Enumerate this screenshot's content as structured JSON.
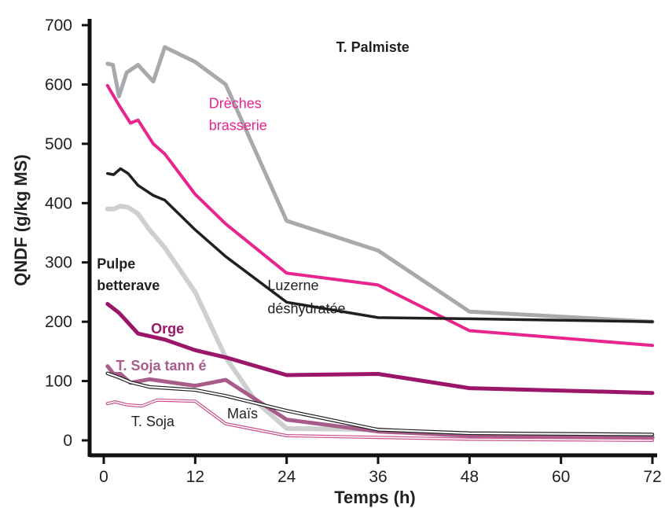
{
  "chart_data": {
    "type": "line",
    "xlabel": "Temps (h)",
    "ylabel": "QNDF (g/kg MS)",
    "xlim": [
      0,
      72
    ],
    "ylim": [
      0,
      700
    ],
    "x_ticks": [
      0,
      12,
      24,
      36,
      48,
      60,
      72
    ],
    "y_ticks": [
      0,
      100,
      200,
      300,
      400,
      500,
      600,
      700
    ],
    "grid": false,
    "series": [
      {
        "name": "T. Palmiste",
        "color": "#a7a9ac",
        "points": [
          [
            0.5,
            635
          ],
          [
            1.2,
            633
          ],
          [
            2,
            580
          ],
          [
            3,
            620
          ],
          [
            4.5,
            633
          ],
          [
            6.5,
            605
          ],
          [
            8,
            663
          ],
          [
            12,
            638
          ],
          [
            16,
            600
          ],
          [
            24,
            370
          ],
          [
            36,
            320
          ],
          [
            48,
            217
          ],
          [
            72,
            200
          ]
        ]
      },
      {
        "name": "Drèches brasserie",
        "color": "#e8258e",
        "points": [
          [
            0.5,
            598
          ],
          [
            2,
            565
          ],
          [
            3.5,
            535
          ],
          [
            4.5,
            540
          ],
          [
            6.5,
            500
          ],
          [
            8,
            483
          ],
          [
            12,
            415
          ],
          [
            16,
            365
          ],
          [
            24,
            282
          ],
          [
            36,
            262
          ],
          [
            48,
            185
          ],
          [
            72,
            160
          ]
        ]
      },
      {
        "name": "Luzerne déshydratée",
        "color": "#231f20",
        "points": [
          [
            0.5,
            450
          ],
          [
            1.3,
            448
          ],
          [
            2.2,
            458
          ],
          [
            3.2,
            450
          ],
          [
            4.5,
            430
          ],
          [
            6.5,
            413
          ],
          [
            8,
            405
          ],
          [
            12,
            355
          ],
          [
            16,
            310
          ],
          [
            24,
            233
          ],
          [
            36,
            207
          ],
          [
            48,
            205
          ],
          [
            72,
            200
          ]
        ]
      },
      {
        "name": "Pulpe betterave",
        "color": "#cdcfd1",
        "points": [
          [
            0.5,
            390
          ],
          [
            1.3,
            390
          ],
          [
            2.2,
            395
          ],
          [
            3.2,
            393
          ],
          [
            4.5,
            382
          ],
          [
            6,
            355
          ],
          [
            8,
            325
          ],
          [
            12,
            250
          ],
          [
            16,
            140
          ],
          [
            20,
            65
          ],
          [
            24,
            20
          ],
          [
            36,
            18
          ],
          [
            48,
            7
          ],
          [
            72,
            5
          ]
        ]
      },
      {
        "name": "Orge",
        "color": "#9b1568",
        "points": [
          [
            0.5,
            230
          ],
          [
            2,
            215
          ],
          [
            4.5,
            180
          ],
          [
            8,
            170
          ],
          [
            12,
            152
          ],
          [
            16,
            140
          ],
          [
            24,
            110
          ],
          [
            36,
            112
          ],
          [
            48,
            88
          ],
          [
            72,
            80
          ]
        ]
      },
      {
        "name": "T. Soja tanné",
        "color": "#a85c8a",
        "points": [
          [
            0.5,
            125
          ],
          [
            1.3,
            112
          ],
          [
            2.2,
            112
          ],
          [
            3.5,
            97
          ],
          [
            6,
            103
          ],
          [
            12,
            92
          ],
          [
            16,
            102
          ],
          [
            24,
            35
          ],
          [
            36,
            15
          ],
          [
            48,
            8
          ],
          [
            72,
            5
          ]
        ]
      },
      {
        "name": "Maïs",
        "color": "#231f20",
        "points": [
          [
            0.5,
            113
          ],
          [
            2,
            106
          ],
          [
            3.5,
            98
          ],
          [
            6,
            90
          ],
          [
            12,
            85
          ],
          [
            16,
            75
          ],
          [
            24,
            50
          ],
          [
            36,
            18
          ],
          [
            48,
            12
          ],
          [
            72,
            10
          ]
        ]
      },
      {
        "name": "T. Soja",
        "color": "#c9528c",
        "points": [
          [
            0.5,
            62
          ],
          [
            1.5,
            65
          ],
          [
            3,
            60
          ],
          [
            5,
            58
          ],
          [
            7,
            68
          ],
          [
            12,
            66
          ],
          [
            16,
            28
          ],
          [
            24,
            8
          ],
          [
            36,
            5
          ],
          [
            48,
            2
          ],
          [
            72,
            0
          ]
        ]
      }
    ],
    "labels": [
      {
        "text": "T.  Palmiste",
        "x": 30.5,
        "y": 655,
        "color": "#231f20",
        "bold": true
      },
      {
        "text": "Drèches",
        "x": 13.8,
        "y": 560,
        "color": "#e8258e",
        "bold": false
      },
      {
        "text": "brasserie",
        "x": 13.8,
        "y": 523,
        "color": "#e8258e",
        "bold": false
      },
      {
        "text": "Luzerne",
        "x": 21.5,
        "y": 253,
        "color": "#231f20",
        "bold": false
      },
      {
        "text": "déshydratée",
        "x": 21.5,
        "y": 214,
        "color": "#231f20",
        "bold": false
      },
      {
        "text": "Pulpe",
        "x": -0.9,
        "y": 290,
        "color": "#231f20",
        "bold": true
      },
      {
        "text": "betterave",
        "x": -0.9,
        "y": 253,
        "color": "#231f20",
        "bold": true
      },
      {
        "text": "Orge",
        "x": 6.2,
        "y": 180,
        "color": "#9b1568",
        "bold": true
      },
      {
        "text": "T. Soja tann é",
        "x": 1.6,
        "y": 118,
        "color": "#a85c8a",
        "bold": true
      },
      {
        "text": "Maïs",
        "x": 16.2,
        "y": 37,
        "color": "#231f20",
        "bold": false
      },
      {
        "text": "T. Soja",
        "x": 3.6,
        "y": 24,
        "color": "#231f20",
        "bold": false
      }
    ]
  }
}
